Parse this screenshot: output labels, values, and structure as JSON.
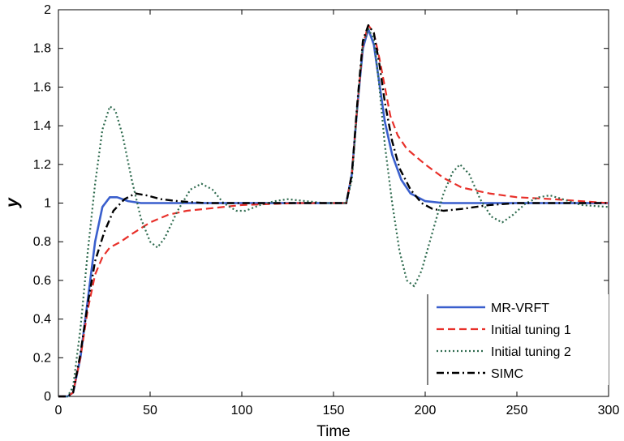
{
  "chart_data": {
    "type": "line",
    "title": "",
    "xlabel": "Time",
    "ylabel": "y",
    "xlim": [
      0,
      300
    ],
    "ylim": [
      0,
      2
    ],
    "xticks": [
      0,
      50,
      100,
      150,
      200,
      250,
      300
    ],
    "yticks": [
      0,
      0.2,
      0.4,
      0.6,
      0.8,
      1,
      1.2,
      1.4,
      1.6,
      1.8,
      2
    ],
    "xtick_labels": [
      "0",
      "50",
      "100",
      "150",
      "200",
      "250",
      "300"
    ],
    "ytick_labels": [
      "0",
      "0.2",
      "0.4",
      "0.6",
      "0.8",
      "1",
      "1.2",
      "1.4",
      "1.6",
      "1.8",
      "2"
    ],
    "grid": false,
    "legend_position": "bottom-right",
    "series": [
      {
        "name": "MR-VRFT",
        "color": "#3a5fcd",
        "dash": "solid",
        "points": [
          [
            0,
            0
          ],
          [
            5,
            0
          ],
          [
            8,
            0.02
          ],
          [
            12,
            0.2
          ],
          [
            16,
            0.5
          ],
          [
            20,
            0.8
          ],
          [
            24,
            0.98
          ],
          [
            28,
            1.03
          ],
          [
            32,
            1.03
          ],
          [
            38,
            1.01
          ],
          [
            45,
            1.0
          ],
          [
            60,
            1.0
          ],
          [
            100,
            1.0
          ],
          [
            150,
            1.0
          ],
          [
            157,
            1.0
          ],
          [
            160,
            1.15
          ],
          [
            163,
            1.5
          ],
          [
            166,
            1.8
          ],
          [
            169,
            1.9
          ],
          [
            172,
            1.82
          ],
          [
            175,
            1.62
          ],
          [
            178,
            1.42
          ],
          [
            182,
            1.25
          ],
          [
            187,
            1.12
          ],
          [
            192,
            1.05
          ],
          [
            200,
            1.01
          ],
          [
            210,
            1.0
          ],
          [
            250,
            1.0
          ],
          [
            300,
            1.0
          ]
        ]
      },
      {
        "name": "Initial tuning 1",
        "color": "#e8302a",
        "dash": "dashed",
        "points": [
          [
            0,
            0
          ],
          [
            5,
            0
          ],
          [
            8,
            0.02
          ],
          [
            12,
            0.2
          ],
          [
            16,
            0.45
          ],
          [
            20,
            0.63
          ],
          [
            24,
            0.72
          ],
          [
            28,
            0.77
          ],
          [
            34,
            0.8
          ],
          [
            40,
            0.84
          ],
          [
            50,
            0.9
          ],
          [
            60,
            0.94
          ],
          [
            70,
            0.96
          ],
          [
            80,
            0.97
          ],
          [
            100,
            0.99
          ],
          [
            130,
            1.0
          ],
          [
            157,
            1.0
          ],
          [
            160,
            1.15
          ],
          [
            163,
            1.5
          ],
          [
            166,
            1.82
          ],
          [
            169,
            1.92
          ],
          [
            172,
            1.88
          ],
          [
            175,
            1.75
          ],
          [
            178,
            1.6
          ],
          [
            181,
            1.45
          ],
          [
            185,
            1.35
          ],
          [
            190,
            1.28
          ],
          [
            200,
            1.2
          ],
          [
            210,
            1.13
          ],
          [
            220,
            1.08
          ],
          [
            235,
            1.05
          ],
          [
            250,
            1.03
          ],
          [
            270,
            1.02
          ],
          [
            300,
            1.0
          ]
        ]
      },
      {
        "name": "Initial tuning 2",
        "color": "#2f6b4f",
        "dash": "dotted",
        "points": [
          [
            0,
            0
          ],
          [
            5,
            0
          ],
          [
            8,
            0.05
          ],
          [
            12,
            0.35
          ],
          [
            16,
            0.75
          ],
          [
            20,
            1.1
          ],
          [
            24,
            1.38
          ],
          [
            28,
            1.5
          ],
          [
            31,
            1.48
          ],
          [
            35,
            1.35
          ],
          [
            40,
            1.12
          ],
          [
            45,
            0.92
          ],
          [
            50,
            0.8
          ],
          [
            54,
            0.77
          ],
          [
            58,
            0.82
          ],
          [
            65,
            0.96
          ],
          [
            72,
            1.07
          ],
          [
            78,
            1.1
          ],
          [
            84,
            1.07
          ],
          [
            90,
            1.0
          ],
          [
            97,
            0.96
          ],
          [
            102,
            0.96
          ],
          [
            110,
            0.99
          ],
          [
            118,
            1.01
          ],
          [
            125,
            1.02
          ],
          [
            135,
            1.01
          ],
          [
            145,
            1.0
          ],
          [
            157,
            1.0
          ],
          [
            160,
            1.12
          ],
          [
            163,
            1.5
          ],
          [
            166,
            1.82
          ],
          [
            169,
            1.9
          ],
          [
            172,
            1.85
          ],
          [
            175,
            1.6
          ],
          [
            178,
            1.3
          ],
          [
            182,
            1.0
          ],
          [
            186,
            0.75
          ],
          [
            190,
            0.6
          ],
          [
            194,
            0.57
          ],
          [
            198,
            0.65
          ],
          [
            204,
            0.85
          ],
          [
            210,
            1.05
          ],
          [
            215,
            1.16
          ],
          [
            219,
            1.2
          ],
          [
            224,
            1.15
          ],
          [
            230,
            1.02
          ],
          [
            236,
            0.93
          ],
          [
            242,
            0.9
          ],
          [
            248,
            0.94
          ],
          [
            255,
            1.0
          ],
          [
            262,
            1.03
          ],
          [
            268,
            1.04
          ],
          [
            275,
            1.02
          ],
          [
            285,
            0.99
          ],
          [
            300,
            0.98
          ]
        ]
      },
      {
        "name": "SIMC",
        "color": "#000000",
        "dash": "dashdot",
        "points": [
          [
            0,
            0
          ],
          [
            5,
            0
          ],
          [
            8,
            0.02
          ],
          [
            12,
            0.22
          ],
          [
            16,
            0.48
          ],
          [
            20,
            0.7
          ],
          [
            25,
            0.85
          ],
          [
            30,
            0.96
          ],
          [
            36,
            1.02
          ],
          [
            42,
            1.05
          ],
          [
            48,
            1.04
          ],
          [
            56,
            1.02
          ],
          [
            65,
            1.01
          ],
          [
            80,
            1.0
          ],
          [
            157,
            1.0
          ],
          [
            160,
            1.15
          ],
          [
            163,
            1.52
          ],
          [
            166,
            1.84
          ],
          [
            169,
            1.92
          ],
          [
            172,
            1.88
          ],
          [
            175,
            1.72
          ],
          [
            178,
            1.52
          ],
          [
            182,
            1.32
          ],
          [
            186,
            1.18
          ],
          [
            192,
            1.07
          ],
          [
            198,
            1.0
          ],
          [
            204,
            0.97
          ],
          [
            210,
            0.96
          ],
          [
            220,
            0.97
          ],
          [
            235,
            0.99
          ],
          [
            250,
            1.0
          ],
          [
            300,
            1.0
          ]
        ]
      }
    ]
  }
}
